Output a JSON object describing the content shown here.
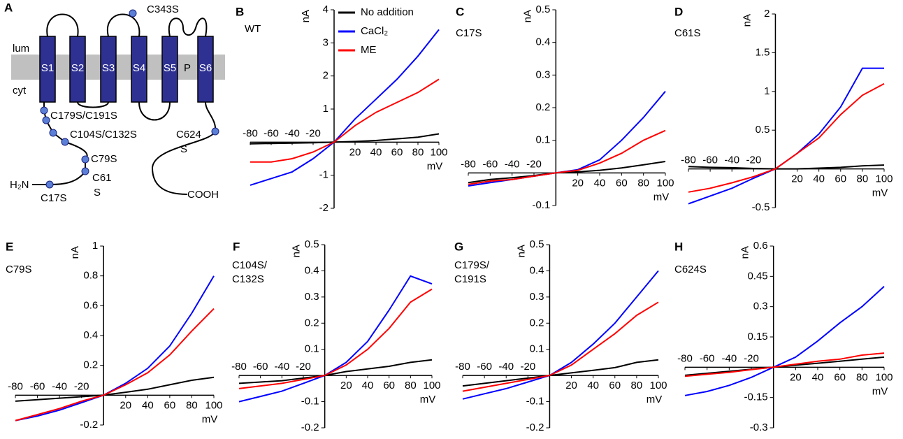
{
  "diagram": {
    "panel": "A",
    "compartments": [
      "lum",
      "cyt"
    ],
    "segments": [
      "S1",
      "S2",
      "S3",
      "S4",
      "S5",
      "S6"
    ],
    "pore": "P",
    "mutations": [
      [
        "C343S"
      ],
      [
        "C179S/C191S"
      ],
      [
        "C104S/C132S"
      ],
      [
        "C79S"
      ],
      [
        "C61",
        "S"
      ],
      [
        "C17S"
      ],
      [
        "C624",
        "S"
      ]
    ],
    "n_terminus": "H₂N",
    "c_terminus": "COOH"
  },
  "chart_data": [
    {
      "type": "line",
      "panel": "B",
      "title": [
        "WT"
      ],
      "x_label": "mV",
      "y_label": "nA",
      "x": [
        -80,
        -60,
        -40,
        -20,
        0,
        20,
        40,
        60,
        80,
        100
      ],
      "xlim": [
        -80,
        100
      ],
      "ylim": [
        -2,
        4
      ],
      "xticks": [
        -80,
        -60,
        -40,
        -20,
        20,
        40,
        60,
        80,
        100
      ],
      "yticks": [
        -2,
        -1,
        1,
        2,
        3,
        4
      ],
      "legend": true,
      "series": [
        {
          "name": "No addition",
          "color": "#000000",
          "values": [
            -0.05,
            -0.04,
            -0.03,
            -0.02,
            0,
            0.02,
            0.05,
            0.1,
            0.15,
            0.25
          ]
        },
        {
          "name": "CaCl₂",
          "color": "#0000ff",
          "values": [
            -1.3,
            -1.1,
            -0.9,
            -0.5,
            0,
            0.7,
            1.3,
            1.9,
            2.6,
            3.4
          ]
        },
        {
          "name": "ME",
          "color": "#ff0000",
          "values": [
            -0.6,
            -0.6,
            -0.5,
            -0.3,
            0,
            0.5,
            0.9,
            1.2,
            1.5,
            1.9
          ]
        }
      ]
    },
    {
      "type": "line",
      "panel": "C",
      "title": [
        "C17S"
      ],
      "x_label": "mV",
      "y_label": "nA",
      "x": [
        -80,
        -60,
        -40,
        -20,
        0,
        20,
        40,
        60,
        80,
        100
      ],
      "xlim": [
        -80,
        100
      ],
      "ylim": [
        -0.1,
        0.5
      ],
      "xticks": [
        -80,
        -60,
        -40,
        -20,
        20,
        40,
        60,
        80,
        100
      ],
      "yticks": [
        -0.1,
        0.1,
        0.2,
        0.3,
        0.4,
        0.5
      ],
      "series": [
        {
          "color": "#000000",
          "values": [
            -0.03,
            -0.02,
            -0.015,
            -0.008,
            0,
            0.003,
            0.008,
            0.015,
            0.025,
            0.035
          ]
        },
        {
          "color": "#0000ff",
          "values": [
            -0.04,
            -0.03,
            -0.02,
            -0.01,
            0,
            0.01,
            0.04,
            0.1,
            0.17,
            0.25
          ]
        },
        {
          "color": "#ff0000",
          "values": [
            -0.035,
            -0.025,
            -0.02,
            -0.01,
            0,
            0.008,
            0.03,
            0.06,
            0.1,
            0.13
          ]
        }
      ]
    },
    {
      "type": "line",
      "panel": "D",
      "title": [
        "C61S"
      ],
      "x_label": "mV",
      "y_label": "nA",
      "x": [
        -80,
        -60,
        -40,
        -20,
        0,
        20,
        40,
        60,
        80,
        100
      ],
      "xlim": [
        -80,
        100
      ],
      "ylim": [
        -0.5,
        2
      ],
      "xticks": [
        -80,
        -60,
        -40,
        -20,
        20,
        40,
        60,
        80,
        100
      ],
      "yticks": [
        -0.5,
        0.5,
        1,
        1.5,
        2
      ],
      "series": [
        {
          "color": "#000000",
          "values": [
            0.03,
            0.02,
            0.015,
            0.005,
            0,
            0,
            0.01,
            0.02,
            0.04,
            0.05
          ]
        },
        {
          "color": "#0000ff",
          "values": [
            -0.45,
            -0.35,
            -0.25,
            -0.12,
            0,
            0.2,
            0.45,
            0.8,
            1.3,
            1.3
          ]
        },
        {
          "color": "#ff0000",
          "values": [
            -0.3,
            -0.25,
            -0.18,
            -0.1,
            0,
            0.2,
            0.4,
            0.7,
            0.95,
            1.1
          ]
        }
      ]
    },
    {
      "type": "line",
      "panel": "E",
      "title": [
        "C79S"
      ],
      "x_label": "mV",
      "y_label": "nA",
      "x": [
        -80,
        -60,
        -40,
        -20,
        0,
        20,
        40,
        60,
        80,
        100
      ],
      "xlim": [
        -80,
        100
      ],
      "ylim": [
        -0.2,
        1
      ],
      "xticks": [
        -80,
        -60,
        -40,
        -20,
        20,
        40,
        60,
        80,
        100
      ],
      "yticks": [
        -0.2,
        0.2,
        0.4,
        0.6,
        0.8,
        1
      ],
      "series": [
        {
          "color": "#000000",
          "values": [
            -0.04,
            -0.03,
            -0.02,
            -0.01,
            0,
            0.02,
            0.04,
            0.07,
            0.1,
            0.12
          ]
        },
        {
          "color": "#0000ff",
          "values": [
            -0.17,
            -0.14,
            -0.1,
            -0.05,
            0,
            0.08,
            0.18,
            0.33,
            0.55,
            0.8
          ]
        },
        {
          "color": "#ff0000",
          "values": [
            -0.17,
            -0.13,
            -0.09,
            -0.04,
            0,
            0.07,
            0.15,
            0.27,
            0.43,
            0.58
          ]
        }
      ]
    },
    {
      "type": "line",
      "panel": "F",
      "title": [
        "C104S/",
        "C132S"
      ],
      "x_label": "mV",
      "y_label": "nA",
      "x": [
        -80,
        -60,
        -40,
        -20,
        0,
        20,
        40,
        60,
        80,
        100
      ],
      "xlim": [
        -80,
        100
      ],
      "ylim": [
        -0.2,
        0.5
      ],
      "xticks": [
        -80,
        -60,
        -40,
        -20,
        20,
        40,
        60,
        80,
        100
      ],
      "yticks": [
        -0.2,
        -0.1,
        0.1,
        0.2,
        0.3,
        0.4,
        0.5
      ],
      "series": [
        {
          "color": "#000000",
          "values": [
            -0.03,
            -0.025,
            -0.02,
            -0.01,
            0,
            0.015,
            0.025,
            0.035,
            0.05,
            0.06
          ]
        },
        {
          "color": "#0000ff",
          "values": [
            -0.1,
            -0.08,
            -0.06,
            -0.03,
            0,
            0.05,
            0.13,
            0.25,
            0.38,
            0.35
          ]
        },
        {
          "color": "#ff0000",
          "values": [
            -0.05,
            -0.04,
            -0.03,
            -0.015,
            0,
            0.04,
            0.1,
            0.18,
            0.28,
            0.33
          ]
        }
      ]
    },
    {
      "type": "line",
      "panel": "G",
      "title": [
        "C179S/",
        "C191S"
      ],
      "x_label": "mV",
      "y_label": "nA",
      "x": [
        -80,
        -60,
        -40,
        -20,
        0,
        20,
        40,
        60,
        80,
        100
      ],
      "xlim": [
        -80,
        100
      ],
      "ylim": [
        -0.2,
        0.5
      ],
      "xticks": [
        -80,
        -60,
        -40,
        -20,
        20,
        40,
        60,
        80,
        100
      ],
      "yticks": [
        -0.2,
        -0.1,
        0.1,
        0.2,
        0.3,
        0.4,
        0.5
      ],
      "series": [
        {
          "color": "#000000",
          "values": [
            -0.04,
            -0.03,
            -0.02,
            -0.01,
            0,
            0.01,
            0.02,
            0.03,
            0.05,
            0.06
          ]
        },
        {
          "color": "#0000ff",
          "values": [
            -0.09,
            -0.07,
            -0.05,
            -0.025,
            0,
            0.05,
            0.12,
            0.2,
            0.3,
            0.4
          ]
        },
        {
          "color": "#ff0000",
          "values": [
            -0.06,
            -0.045,
            -0.03,
            -0.015,
            0,
            0.04,
            0.1,
            0.16,
            0.23,
            0.28
          ]
        }
      ]
    },
    {
      "type": "line",
      "panel": "H",
      "title": [
        "C624S"
      ],
      "x_label": "mV",
      "y_label": "nA",
      "x": [
        -80,
        -60,
        -40,
        -20,
        0,
        20,
        40,
        60,
        80,
        100
      ],
      "xlim": [
        -80,
        100
      ],
      "ylim": [
        -0.3,
        0.6
      ],
      "xticks": [
        -80,
        -60,
        -40,
        -20,
        20,
        40,
        60,
        80,
        100
      ],
      "yticks": [
        -0.3,
        -0.15,
        0.15,
        0.3,
        0.45,
        0.6
      ],
      "series": [
        {
          "color": "#000000",
          "values": [
            -0.04,
            -0.03,
            -0.02,
            -0.01,
            0,
            0.01,
            0.02,
            0.03,
            0.04,
            0.05
          ]
        },
        {
          "color": "#0000ff",
          "values": [
            -0.14,
            -0.12,
            -0.09,
            -0.05,
            0,
            0.05,
            0.13,
            0.22,
            0.3,
            0.4
          ]
        },
        {
          "color": "#ff0000",
          "values": [
            -0.045,
            -0.035,
            -0.025,
            -0.012,
            0,
            0.015,
            0.03,
            0.04,
            0.06,
            0.07
          ]
        }
      ]
    }
  ]
}
